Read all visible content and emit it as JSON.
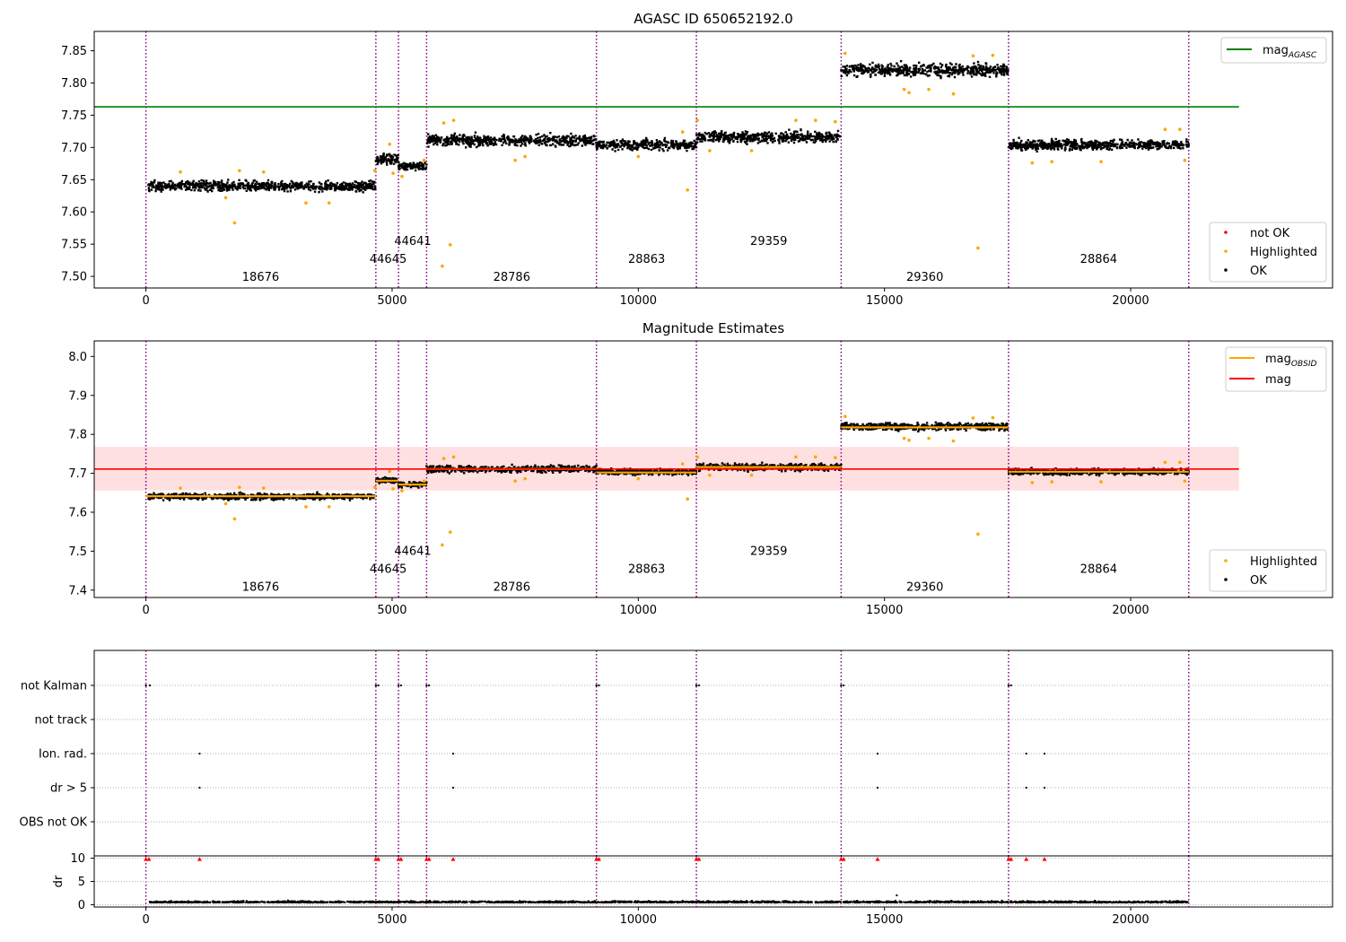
{
  "chart_data": [
    {
      "type": "scatter",
      "title": "AGASC ID 650652192.0",
      "xlabel": "",
      "ylabel": "",
      "xlim": [
        -1050,
        24100
      ],
      "ylim": [
        7.482,
        7.88
      ],
      "x_ticks": [
        0,
        5000,
        10000,
        15000,
        20000
      ],
      "x_tick_labels": [
        "0",
        "5000",
        "10000",
        "15000",
        "20000"
      ],
      "y_ticks": [
        7.5,
        7.55,
        7.6,
        7.65,
        7.7,
        7.75,
        7.8,
        7.85
      ],
      "y_tick_labels": [
        "7.50",
        "7.55",
        "7.60",
        "7.65",
        "7.70",
        "7.75",
        "7.80",
        "7.85"
      ],
      "obs_boundaries": [
        0,
        4670,
        5130,
        5700,
        9150,
        11180,
        14120,
        17520,
        21180
      ],
      "obs_labels": [
        {
          "x": 2330,
          "y": 7.5,
          "text": "18676"
        },
        {
          "x": 4920,
          "y": 7.528,
          "text": "44645"
        },
        {
          "x": 5420,
          "y": 7.556,
          "text": "44641"
        },
        {
          "x": 7430,
          "y": 7.5,
          "text": "28786"
        },
        {
          "x": 10170,
          "y": 7.528,
          "text": "28863"
        },
        {
          "x": 12650,
          "y": 7.556,
          "text": "29359"
        },
        {
          "x": 15820,
          "y": 7.5,
          "text": "29360"
        },
        {
          "x": 19350,
          "y": 7.528,
          "text": "28864"
        }
      ],
      "segments": [
        {
          "x0": 50,
          "x1": 4670,
          "mean": 7.64,
          "spread": 0.008
        },
        {
          "x0": 4670,
          "x1": 5130,
          "mean": 7.682,
          "spread": 0.008
        },
        {
          "x0": 5130,
          "x1": 5700,
          "mean": 7.671,
          "spread": 0.007
        },
        {
          "x0": 5700,
          "x1": 9150,
          "mean": 7.711,
          "spread": 0.009
        },
        {
          "x0": 9150,
          "x1": 11180,
          "mean": 7.704,
          "spread": 0.008
        },
        {
          "x0": 11180,
          "x1": 14120,
          "mean": 7.716,
          "spread": 0.009
        },
        {
          "x0": 14120,
          "x1": 17520,
          "mean": 7.82,
          "spread": 0.01
        },
        {
          "x0": 17520,
          "x1": 21180,
          "mean": 7.704,
          "spread": 0.008
        }
      ],
      "highlighted_points": [
        [
          1800,
          7.583
        ],
        [
          3250,
          7.614
        ],
        [
          3720,
          7.614
        ],
        [
          1620,
          7.622
        ],
        [
          700,
          7.662
        ],
        [
          1900,
          7.664
        ],
        [
          2390,
          7.662
        ],
        [
          4650,
          7.664
        ],
        [
          4950,
          7.705
        ],
        [
          5020,
          7.66
        ],
        [
          5200,
          7.655
        ],
        [
          5650,
          7.68
        ],
        [
          6020,
          7.516
        ],
        [
          6180,
          7.549
        ],
        [
          6250,
          7.742
        ],
        [
          6050,
          7.738
        ],
        [
          7500,
          7.68
        ],
        [
          7700,
          7.686
        ],
        [
          10000,
          7.686
        ],
        [
          11000,
          7.634
        ],
        [
          10900,
          7.724
        ],
        [
          11200,
          7.742
        ],
        [
          11450,
          7.695
        ],
        [
          12300,
          7.695
        ],
        [
          13200,
          7.742
        ],
        [
          13600,
          7.742
        ],
        [
          14000,
          7.74
        ],
        [
          14200,
          7.846
        ],
        [
          15400,
          7.79
        ],
        [
          15500,
          7.785
        ],
        [
          15900,
          7.79
        ],
        [
          16400,
          7.783
        ],
        [
          16900,
          7.544
        ],
        [
          17200,
          7.843
        ],
        [
          16800,
          7.842
        ],
        [
          18000,
          7.676
        ],
        [
          18400,
          7.678
        ],
        [
          19400,
          7.678
        ],
        [
          20700,
          7.728
        ],
        [
          21000,
          7.728
        ],
        [
          21100,
          7.68
        ]
      ],
      "series": [
        {
          "name": "mag$_{AGASC}$",
          "legend_label": "mag",
          "legend_sub": "AGASC",
          "type": "hline",
          "value": 7.763,
          "x0": -1050,
          "x1": 22200,
          "color": "#008000"
        },
        {
          "name": "not OK",
          "color": "#ff0000"
        },
        {
          "name": "Highlighted",
          "color": "#ffa500"
        },
        {
          "name": "OK",
          "color": "#000000"
        }
      ],
      "legend_top": "upper right",
      "legend_bottom": "lower right"
    },
    {
      "type": "scatter",
      "title": "Magnitude Estimates",
      "xlabel": "",
      "ylabel": "",
      "xlim": [
        -1050,
        24100
      ],
      "ylim": [
        7.381,
        8.04
      ],
      "x_ticks": [
        0,
        5000,
        10000,
        15000,
        20000
      ],
      "x_tick_labels": [
        "0",
        "5000",
        "10000",
        "15000",
        "20000"
      ],
      "y_ticks": [
        7.4,
        7.5,
        7.6,
        7.7,
        7.8,
        7.9,
        8.0
      ],
      "y_tick_labels": [
        "7.4",
        "7.5",
        "7.6",
        "7.7",
        "7.8",
        "7.9",
        "8.0"
      ],
      "obs_boundaries": [
        0,
        4670,
        5130,
        5700,
        9150,
        11180,
        14120,
        17520,
        21180
      ],
      "obs_labels": [
        {
          "x": 2330,
          "y": 7.41,
          "text": "18676"
        },
        {
          "x": 4920,
          "y": 7.456,
          "text": "44645"
        },
        {
          "x": 5420,
          "y": 7.502,
          "text": "44641"
        },
        {
          "x": 7430,
          "y": 7.41,
          "text": "28786"
        },
        {
          "x": 10170,
          "y": 7.456,
          "text": "28863"
        },
        {
          "x": 12650,
          "y": 7.502,
          "text": "29359"
        },
        {
          "x": 15820,
          "y": 7.41,
          "text": "29360"
        },
        {
          "x": 19350,
          "y": 7.456,
          "text": "28864"
        }
      ],
      "mag_value": 7.711,
      "mag_band": [
        7.656,
        7.768
      ],
      "mag_line_x": [
        -1050,
        22200
      ],
      "obsid_means": [
        {
          "x0": 0,
          "x1": 4670,
          "mean": 7.641
        },
        {
          "x0": 4670,
          "x1": 5130,
          "mean": 7.681
        },
        {
          "x0": 5130,
          "x1": 5700,
          "mean": 7.671
        },
        {
          "x0": 5700,
          "x1": 9150,
          "mean": 7.711
        },
        {
          "x0": 9150,
          "x1": 11180,
          "mean": 7.702
        },
        {
          "x0": 11180,
          "x1": 14120,
          "mean": 7.716
        },
        {
          "x0": 14120,
          "x1": 17520,
          "mean": 7.818
        },
        {
          "x0": 17520,
          "x1": 21180,
          "mean": 7.704
        }
      ],
      "series": [
        {
          "name": "mag$_{OBSID}$",
          "legend_label": "mag",
          "legend_sub": "OBSID",
          "color": "#ffa500"
        },
        {
          "name": "mag",
          "legend_label": "mag",
          "color": "#ff0000"
        },
        {
          "name": "Highlighted",
          "color": "#ffa500"
        },
        {
          "name": "OK",
          "color": "#000000"
        }
      ]
    },
    {
      "type": "scatter",
      "title": "",
      "xlabel": "",
      "ylabel": "",
      "xlim": [
        -1050,
        24100
      ],
      "categories": [
        "not Kalman",
        "not track",
        "Ion. rad.",
        "dr > 5",
        "OBS not OK"
      ],
      "obs_boundaries": [
        0,
        4670,
        5130,
        5700,
        9150,
        11180,
        14120,
        17520,
        21180
      ],
      "flag_points": {
        "not Kalman": [
          0,
          80,
          4670,
          4720,
          5130,
          5180,
          5700,
          5750,
          9150,
          9200,
          11180,
          11230,
          14120,
          14170,
          17520,
          17570
        ],
        "not track": [],
        "Ion. rad.": [
          1090,
          6240,
          14860,
          17880,
          18250
        ],
        "dr > 5": [
          1090,
          6240,
          14860,
          17880,
          18250
        ],
        "OBS not OK": []
      }
    },
    {
      "type": "scatter",
      "title": "",
      "xlabel": "",
      "ylabel": "dr",
      "xlim": [
        -1050,
        24100
      ],
      "ylim": [
        -0.5,
        10.5
      ],
      "x_ticks": [
        0,
        5000,
        10000,
        15000,
        20000
      ],
      "x_tick_labels": [
        "0",
        "5000",
        "10000",
        "15000",
        "20000"
      ],
      "y_ticks": [
        0,
        5,
        10
      ],
      "y_tick_labels": [
        "0",
        "5",
        "10"
      ],
      "obs_boundaries": [
        0,
        4670,
        5130,
        5700,
        9150,
        11180,
        14120,
        17520,
        21180
      ],
      "red_markers_x": [
        0,
        60,
        4670,
        4720,
        5130,
        5180,
        5700,
        5750,
        9150,
        9200,
        11180,
        11230,
        14120,
        14170,
        17520,
        17570,
        1090,
        6240,
        14860,
        17880,
        18250
      ],
      "red_marker_y": 9.8,
      "outlier": [
        15250,
        2.0
      ]
    }
  ]
}
